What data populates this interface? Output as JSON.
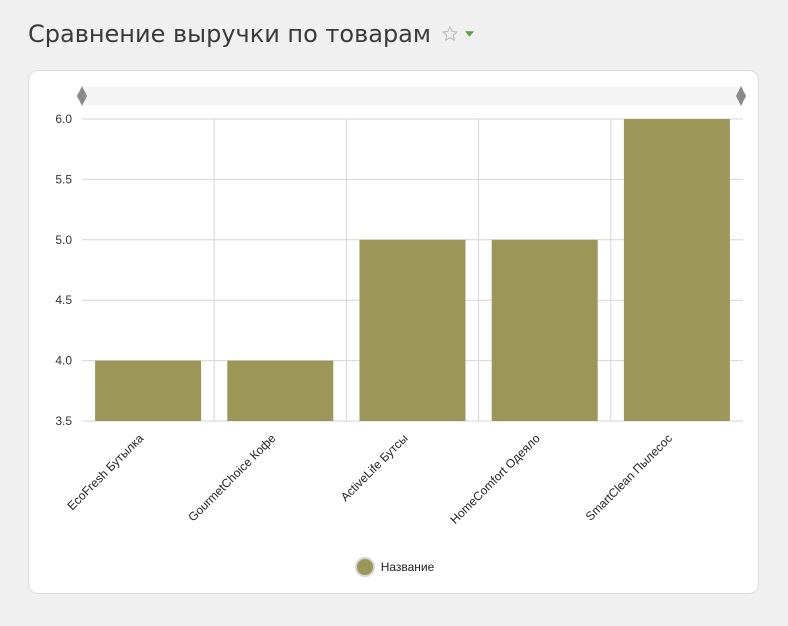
{
  "header": {
    "title": "Сравнение выручки по товарам"
  },
  "icons": {
    "favorite": "star-outline-icon",
    "menu": "caret-down-icon"
  },
  "colors": {
    "bar": "#9c9759",
    "menu_caret": "#5aa33c",
    "star": "#bdbdbd"
  },
  "chart_data": {
    "type": "bar",
    "categories": [
      "EcoFresh Бутылка",
      "GourmetChoice Кофе",
      "ActiveLife Бутсы",
      "HomeComfort Одеяло",
      "SmartClean Пылесос"
    ],
    "series": [
      {
        "name": "Название",
        "values": [
          4.0,
          4.0,
          5.0,
          5.0,
          6.0
        ]
      }
    ],
    "ylim": [
      3.5,
      6.0
    ],
    "yticks": [
      "3.5",
      "4.0",
      "4.5",
      "5.0",
      "5.5",
      "6.0"
    ],
    "grid": true,
    "legend": "bottom-center",
    "title": "",
    "xlabel": "",
    "ylabel": ""
  }
}
